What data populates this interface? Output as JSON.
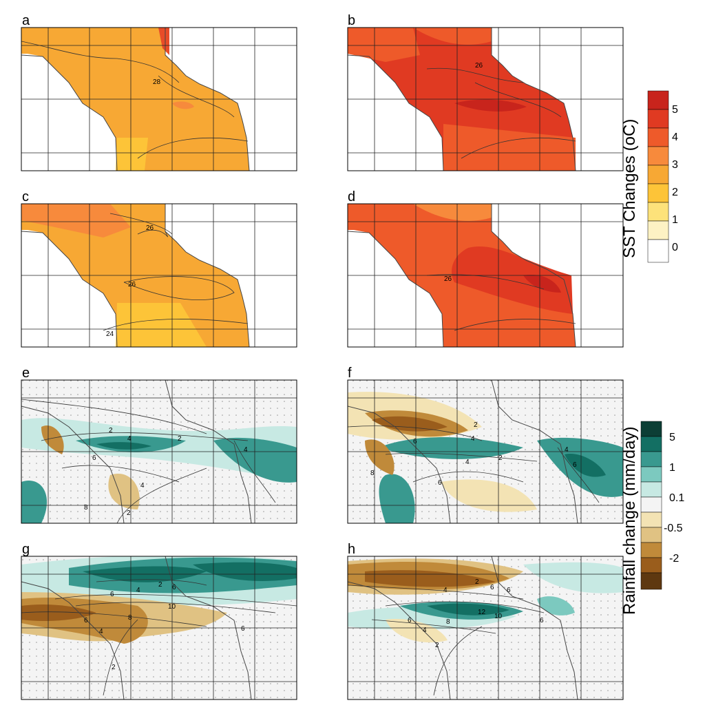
{
  "panels": [
    {
      "label": "a",
      "contour_labels": [
        "28"
      ]
    },
    {
      "label": "b",
      "contour_labels": [
        "26"
      ]
    },
    {
      "label": "c",
      "contour_labels": [
        "26",
        "26",
        "24"
      ]
    },
    {
      "label": "d",
      "contour_labels": [
        "26"
      ]
    },
    {
      "label": "e",
      "contour_labels": [
        "2",
        "2",
        "4",
        "6",
        "4",
        "4",
        "8",
        "2"
      ]
    },
    {
      "label": "f",
      "contour_labels": [
        "2",
        "4",
        "6",
        "4",
        "2",
        "4",
        "6",
        "6",
        "8"
      ]
    },
    {
      "label": "g",
      "contour_labels": [
        "2",
        "4",
        "6",
        "6",
        "10",
        "8",
        "6",
        "4",
        "6",
        "2"
      ]
    },
    {
      "label": "h",
      "contour_labels": [
        "2",
        "4",
        "6",
        "6",
        "12",
        "10",
        "8",
        "6",
        "4",
        "6",
        "2"
      ]
    }
  ],
  "colorbars": {
    "sst": {
      "title": "SST Changes (oC)",
      "ticks": [
        "5",
        "4",
        "3",
        "2",
        "1",
        "0"
      ],
      "colors": [
        "#c8241c",
        "#e03a22",
        "#ee5a2a",
        "#f78a3c",
        "#f7a834",
        "#fdc438",
        "#fde27a",
        "#fdf2c4",
        "#ffffff"
      ]
    },
    "rain": {
      "title": "Rainfall change (mm/day)",
      "ticks": [
        "5",
        "1",
        "0.1",
        "-0.5",
        "-2"
      ],
      "colors": [
        "#0c3e35",
        "#136f63",
        "#39998f",
        "#7cc9bf",
        "#c7e9e3",
        "#f4f4f4",
        "#f3e3b4",
        "#e0c283",
        "#c08a3a",
        "#9a5d1c",
        "#5e3810"
      ]
    }
  },
  "colors": {
    "sst_fill_low": "#f7a834",
    "sst_fill_high": "#e03a22",
    "rain_wet": "#39998f",
    "rain_dry": "#c08a3a"
  }
}
